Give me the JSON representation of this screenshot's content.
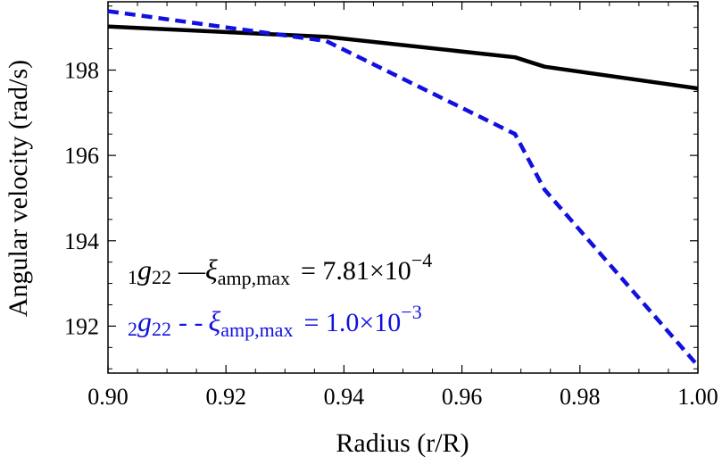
{
  "chart_data": {
    "type": "line",
    "xlabel": "Radius (r/R)",
    "ylabel": "Angular velocity (rad/s)",
    "xlim": [
      0.9,
      1.0
    ],
    "ylim": [
      190.9,
      199.6
    ],
    "xticks": [
      "0.90",
      "0.92",
      "0.94",
      "0.96",
      "0.98",
      "1.00"
    ],
    "yticks": [
      "192",
      "194",
      "196",
      "198"
    ],
    "grid": false,
    "legend_position": "lower-left, inside plot",
    "series": [
      {
        "color": "#000000",
        "style": "solid",
        "x": [
          0.9,
          0.937,
          0.969,
          0.974,
          1.0
        ],
        "y": [
          199.02,
          198.78,
          198.3,
          198.08,
          197.57
        ]
      },
      {
        "color": "#1010e0",
        "style": "dashed",
        "x": [
          0.9,
          0.937,
          0.969,
          0.974,
          1.0
        ],
        "y": [
          199.38,
          198.68,
          196.5,
          195.2,
          191.07
        ]
      }
    ],
    "legend": [
      {
        "prefix": "1",
        "symbol": "g",
        "subscript": "22",
        "line": "—",
        "xi": "ξ",
        "xi_sub": "amp,max",
        "value": "= 7.81×10",
        "exp": "−4",
        "color": "#000000"
      },
      {
        "prefix": "2",
        "symbol": "g",
        "subscript": "22",
        "line": "- -",
        "xi": "ξ",
        "xi_sub": "amp,max",
        "value": "= 1.0×10",
        "exp": "−3",
        "color": "#1010e0"
      }
    ]
  }
}
